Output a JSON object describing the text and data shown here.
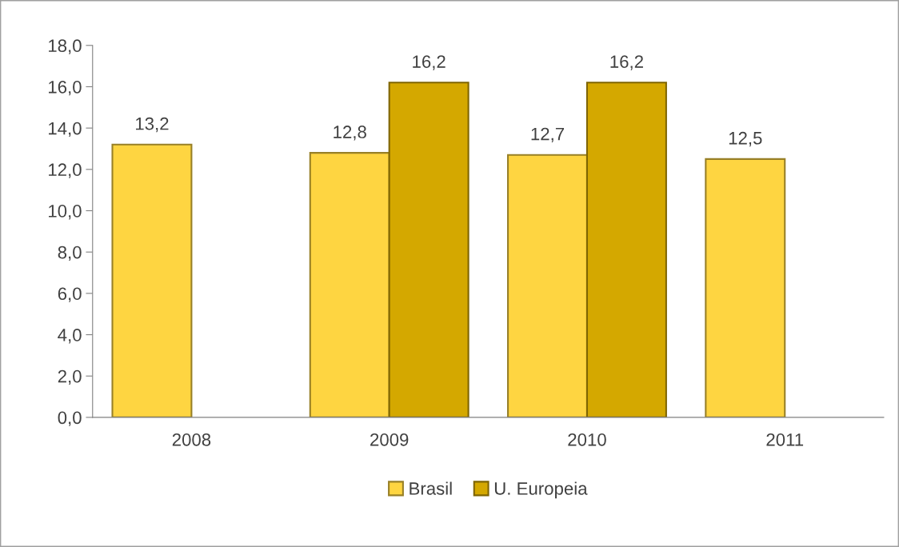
{
  "chart_data": {
    "type": "bar",
    "categories": [
      "2008",
      "2009",
      "2010",
      "2011"
    ],
    "series": [
      {
        "name": "Brasil",
        "color": "#fed541",
        "values": [
          13.2,
          12.8,
          12.7,
          12.5
        ],
        "value_labels": [
          "13,2",
          "12,8",
          "12,7",
          "12,5"
        ]
      },
      {
        "name": "U. Europeia",
        "color": "#d4a800",
        "values": [
          null,
          16.2,
          16.2,
          null
        ],
        "value_labels": [
          null,
          "16,2",
          "16,2",
          null
        ]
      }
    ],
    "ylim": [
      0,
      18
    ],
    "yticks": [
      {
        "value": 0,
        "label": "0,0"
      },
      {
        "value": 2,
        "label": "2,0"
      },
      {
        "value": 4,
        "label": "4,0"
      },
      {
        "value": 6,
        "label": "6,0"
      },
      {
        "value": 8,
        "label": "8,0"
      },
      {
        "value": 10,
        "label": "10,0"
      },
      {
        "value": 12,
        "label": "12,0"
      },
      {
        "value": 14,
        "label": "14,0"
      },
      {
        "value": 16,
        "label": "16,0"
      },
      {
        "value": 18,
        "label": "18,0"
      }
    ],
    "grid": false,
    "legend": "bottom"
  }
}
